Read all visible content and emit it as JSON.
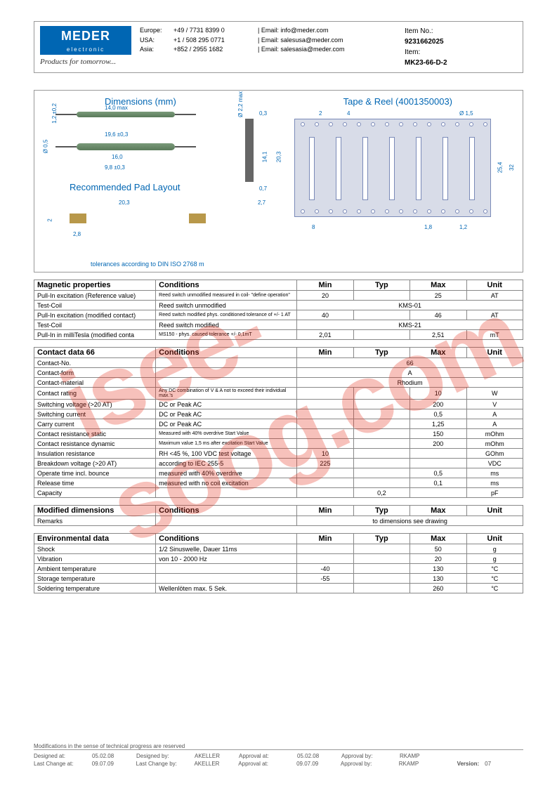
{
  "header": {
    "logo_text": "MEDER",
    "logo_sub": "electronic",
    "tagline": "Products for tomorrow...",
    "contacts": [
      {
        "region": "Europe:",
        "phone": "+49 / 7731 8399 0",
        "email_label": "| Email:",
        "email": "info@meder.com"
      },
      {
        "region": "USA:",
        "phone": "+1 / 508 295 0771",
        "email_label": "| Email:",
        "email": "salesusa@meder.com"
      },
      {
        "region": "Asia:",
        "phone": "+852 / 2955 1682",
        "email_label": "| Email:",
        "email": "salesasia@meder.com"
      }
    ],
    "item_no_label": "Item No.:",
    "item_no": "9231662025",
    "item_label": "Item:",
    "item": "MK23-66-D-2"
  },
  "diagram": {
    "title_dims": "Dimensions (mm)",
    "title_tape": "Tape & Reel (4001350003)",
    "title_pad": "Recommended Pad Layout",
    "tolerance": "tolerances according to DIN ISO 2768 m",
    "dims": {
      "d1": "14,0 max",
      "d2": "1,2 ±0,2",
      "d3": "Ø 0,5",
      "d4": "19,6 ±0,3",
      "d5": "16,0",
      "d6": "9,8 ±0,3",
      "d7": "Ø 2,2 max",
      "d8": "0,3",
      "d9": "14,1",
      "d10": "20,3",
      "d11": "0,7",
      "d12": "2,7",
      "d13": "20,3",
      "d14": "2",
      "d15": "2,8",
      "t1": "2",
      "t2": "4",
      "t3": "Ø 1,5",
      "t4": "25,4",
      "t5": "32",
      "t6": "8",
      "t7": "1,8",
      "t8": "1,2"
    }
  },
  "tables": {
    "magnetic": {
      "title": "Magnetic properties",
      "cond_hdr": "Conditions",
      "cols": [
        "Min",
        "Typ",
        "Max",
        "Unit"
      ],
      "rows": [
        {
          "prop": "Pull-In excitation (Reference value)",
          "cond": "Reed switch unmodified measured in coil- \"define operation\"",
          "tiny": true,
          "min": "20",
          "typ": "",
          "max": "25",
          "unit": "AT"
        },
        {
          "prop": "Test-Coil",
          "cond": "Reed switch unmodified",
          "span": "KMS-01"
        },
        {
          "prop": "Pull-In excitation (modified contact)",
          "cond": "Reed switch modified phys. conditioned tolerance of +/- 1 AT",
          "tiny": true,
          "min": "40",
          "typ": "",
          "max": "46",
          "unit": "AT"
        },
        {
          "prop": "Test-Coil",
          "cond": "Reed switch modified",
          "span": "KMS-21"
        },
        {
          "prop": "Pull-In in milliTesla (modified conta",
          "cond": "MS150 - phys. caused tolerance +/- 0,1mT",
          "tiny": true,
          "min": "2,01",
          "typ": "",
          "max": "2,51",
          "unit": "mT"
        }
      ]
    },
    "contact": {
      "title": "Contact data  66",
      "cond_hdr": "Conditions",
      "cols": [
        "Min",
        "Typ",
        "Max",
        "Unit"
      ],
      "rows": [
        {
          "prop": "Contact-No.",
          "cond": "",
          "span": "66"
        },
        {
          "prop": "Contact-form",
          "cond": "",
          "span": "A"
        },
        {
          "prop": "Contact-material",
          "cond": "",
          "span": "Rhodium"
        },
        {
          "prop": "Contact rating",
          "cond": "Any DC combination of V & A not to exceed their individual max.'s",
          "tiny": true,
          "min": "",
          "typ": "",
          "max": "10",
          "unit": "W"
        },
        {
          "prop": "Switching voltage (>20 AT)",
          "cond": "DC or Peak AC",
          "min": "",
          "typ": "",
          "max": "200",
          "unit": "V"
        },
        {
          "prop": "Switching current",
          "cond": "DC or Peak AC",
          "min": "",
          "typ": "",
          "max": "0,5",
          "unit": "A"
        },
        {
          "prop": "Carry current",
          "cond": "DC or Peak AC",
          "min": "",
          "typ": "",
          "max": "1,25",
          "unit": "A"
        },
        {
          "prop": "Contact resistance static",
          "cond": "Measured with 40% overdrive Start Value",
          "tiny": true,
          "min": "",
          "typ": "",
          "max": "150",
          "unit": "mOhm"
        },
        {
          "prop": "Contact resistance dynamic",
          "cond": "Maximum value 1,5 ms after excitation Start Value",
          "tiny": true,
          "min": "",
          "typ": "",
          "max": "200",
          "unit": "mOhm"
        },
        {
          "prop": "Insulation resistance",
          "cond": "RH <45 %, 100 VDC test voltage",
          "min": "10",
          "typ": "",
          "max": "",
          "unit": "GOhm"
        },
        {
          "prop": "Breakdown voltage (>20 AT)",
          "cond": "according to IEC 255-5",
          "min": "225",
          "typ": "",
          "max": "",
          "unit": "VDC"
        },
        {
          "prop": "Operate time incl. bounce",
          "cond": "measured with 40% overdrive",
          "min": "",
          "typ": "",
          "max": "0,5",
          "unit": "ms"
        },
        {
          "prop": "Release time",
          "cond": "measured with no coil excitation",
          "min": "",
          "typ": "",
          "max": "0,1",
          "unit": "ms"
        },
        {
          "prop": "Capacity",
          "cond": "",
          "min": "",
          "typ": "0,2",
          "max": "",
          "unit": "pF"
        }
      ]
    },
    "modified": {
      "title": "Modified dimensions",
      "cond_hdr": "Conditions",
      "cols": [
        "Min",
        "Typ",
        "Max",
        "Unit"
      ],
      "rows": [
        {
          "prop": "Remarks",
          "cond": "",
          "span": "to dimensions see drawing"
        }
      ]
    },
    "env": {
      "title": "Environmental data",
      "cond_hdr": "Conditions",
      "cols": [
        "Min",
        "Typ",
        "Max",
        "Unit"
      ],
      "rows": [
        {
          "prop": "Shock",
          "cond": "1/2 Sinuswelle, Dauer 11ms",
          "min": "",
          "typ": "",
          "max": "50",
          "unit": "g"
        },
        {
          "prop": "Vibration",
          "cond": "von  10 - 2000 Hz",
          "min": "",
          "typ": "",
          "max": "20",
          "unit": "g"
        },
        {
          "prop": "Ambient temperature",
          "cond": "",
          "min": "-40",
          "typ": "",
          "max": "130",
          "unit": "°C"
        },
        {
          "prop": "Storage temperature",
          "cond": "",
          "min": "-55",
          "typ": "",
          "max": "130",
          "unit": "°C"
        },
        {
          "prop": "Soldering temperature",
          "cond": "Wellenlöten max. 5 Sek.",
          "min": "",
          "typ": "",
          "max": "260",
          "unit": "°C"
        }
      ]
    }
  },
  "footer": {
    "note": "Modifications in the sense of technical progress are reserved",
    "row1": [
      {
        "l": "Designed at:",
        "v": "05.02.08"
      },
      {
        "l": "Designed by:",
        "v": "AKELLER"
      },
      {
        "l": "Approval at:",
        "v": "05.02.08"
      },
      {
        "l": "Approval by:",
        "v": "RKAMP"
      }
    ],
    "row2": [
      {
        "l": "Last Change at:",
        "v": "09.07.09"
      },
      {
        "l": "Last Change by:",
        "v": "AKELLER"
      },
      {
        "l": "Approval at:",
        "v": "09.07.09"
      },
      {
        "l": "Approval by:",
        "v": "RKAMP"
      }
    ],
    "version_label": "Version:",
    "version": "07"
  },
  "watermark": "isee-soog.com"
}
